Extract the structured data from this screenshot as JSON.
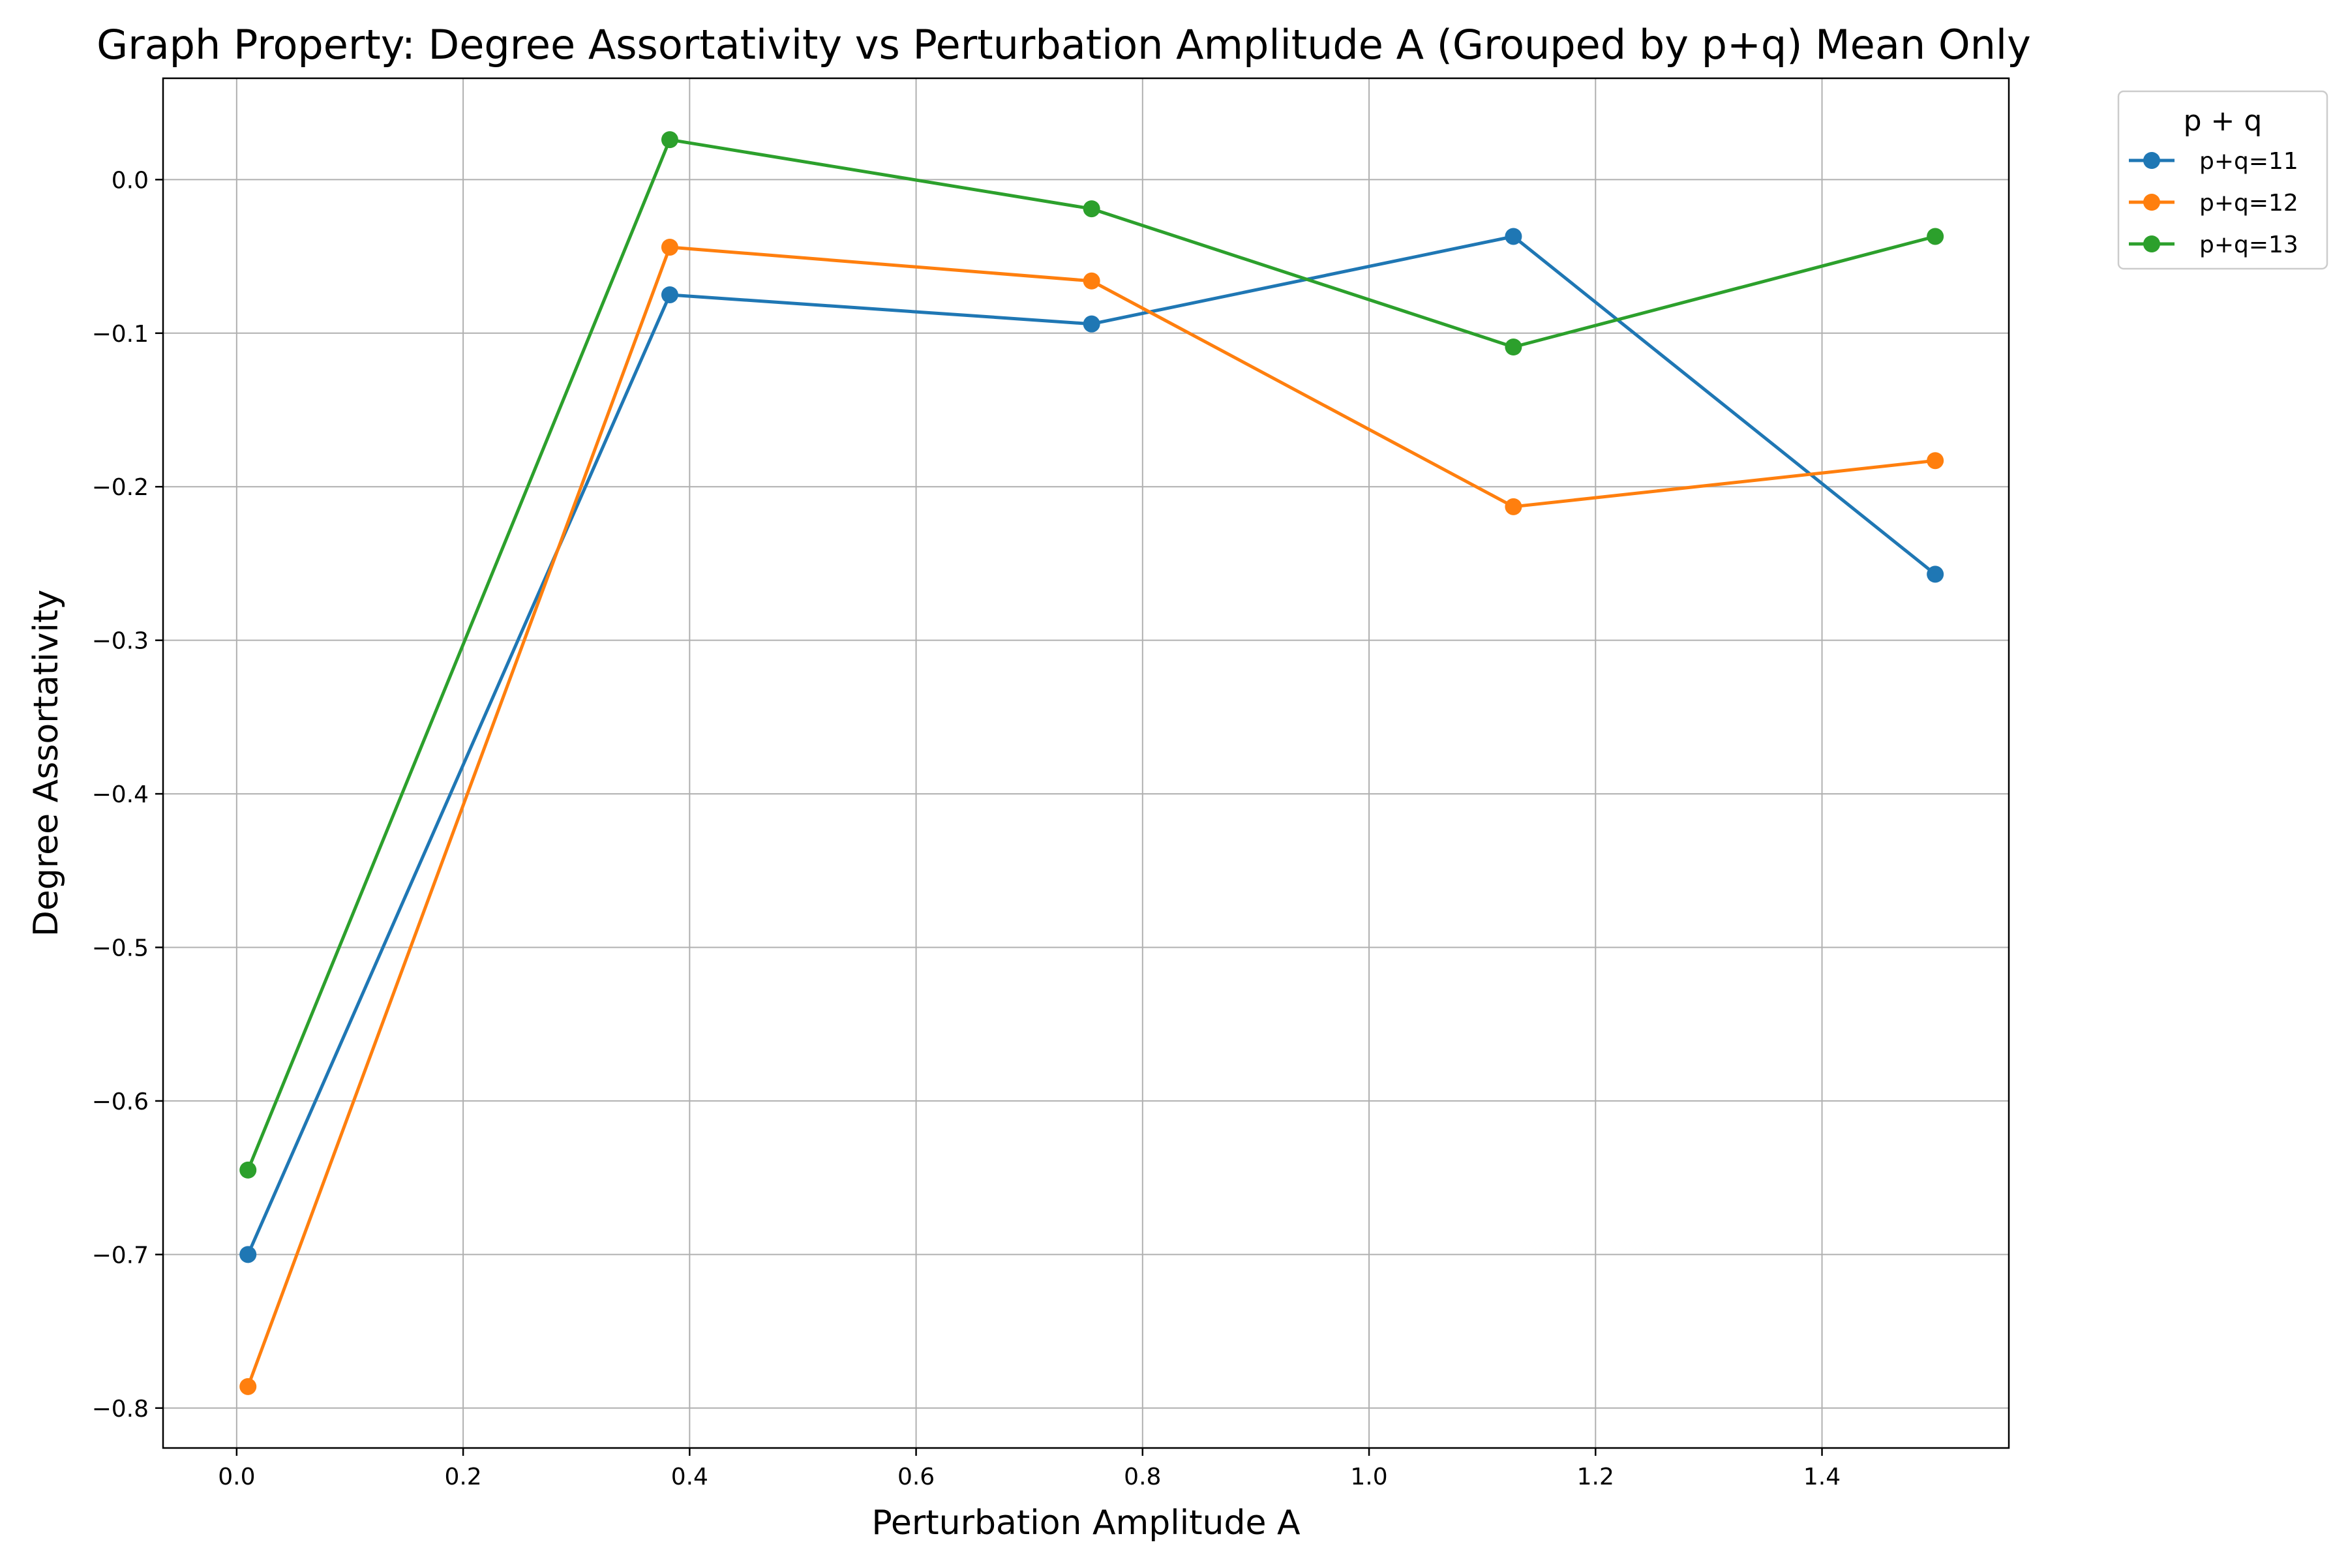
{
  "chart_data": {
    "type": "line",
    "title": "Graph Property: Degree Assortativity vs Perturbation Amplitude A (Grouped by p+q) Mean Only",
    "xlabel": "Perturbation Amplitude A",
    "ylabel": "Degree Assortativity",
    "xlim": [
      -0.065,
      1.565
    ],
    "ylim": [
      -0.826,
      0.066
    ],
    "x_ticks": [
      0.0,
      0.2,
      0.4,
      0.6,
      0.8,
      1.0,
      1.2,
      1.4
    ],
    "x_tick_labels": [
      "0.0",
      "0.2",
      "0.4",
      "0.6",
      "0.8",
      "1.0",
      "1.2",
      "1.4"
    ],
    "y_ticks": [
      0.0,
      -0.1,
      -0.2,
      -0.3,
      -0.4,
      -0.5,
      -0.6,
      -0.7,
      -0.8
    ],
    "y_tick_labels": [
      "0.0",
      "−0.1",
      "−0.2",
      "−0.3",
      "−0.4",
      "−0.5",
      "−0.6",
      "−0.7",
      "−0.8"
    ],
    "grid": true,
    "legend": {
      "title": "p + q",
      "placement": "outside-upper-right"
    },
    "x": [
      0.01,
      0.3825,
      0.755,
      1.1275,
      1.5
    ],
    "series": [
      {
        "name": "p+q=11",
        "color": "#1f77b4",
        "values": [
          -0.7,
          -0.075,
          -0.094,
          -0.037,
          -0.257
        ]
      },
      {
        "name": "p+q=12",
        "color": "#ff7f0e",
        "values": [
          -0.786,
          -0.044,
          -0.066,
          -0.213,
          -0.183
        ]
      },
      {
        "name": "p+q=13",
        "color": "#2ca02c",
        "values": [
          -0.645,
          0.026,
          -0.019,
          -0.109,
          -0.037
        ]
      }
    ]
  }
}
